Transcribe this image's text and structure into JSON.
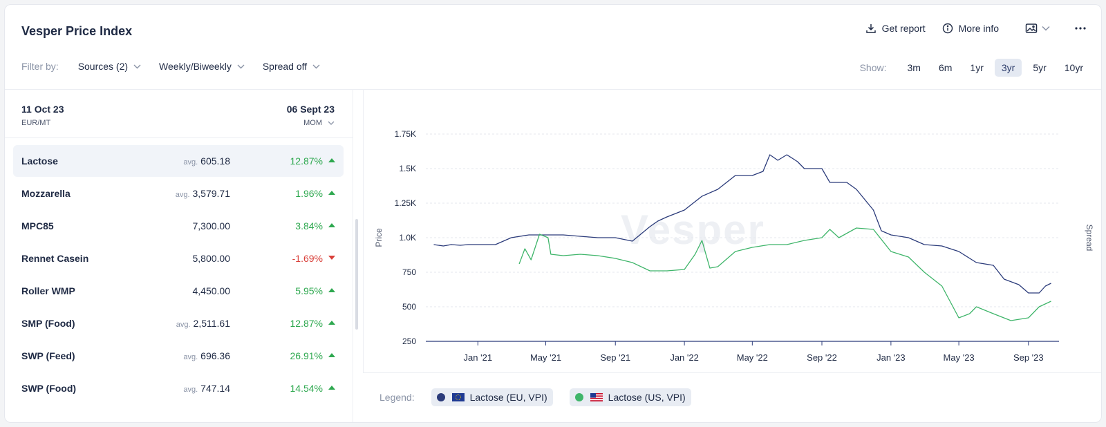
{
  "header": {
    "title": "Vesper Price Index",
    "get_report": "Get report",
    "more_info": "More info"
  },
  "filters": {
    "label": "Filter by:",
    "sources": "Sources (2)",
    "frequency": "Weekly/Biweekly",
    "spread": "Spread off"
  },
  "range": {
    "label": "Show:",
    "options": [
      "3m",
      "6m",
      "1yr",
      "3yr",
      "5yr",
      "10yr"
    ],
    "active": "3yr"
  },
  "list_header": {
    "left_date": "11 Oct 23",
    "unit": "EUR/MT",
    "right_date": "06 Sept 23",
    "compare": "MOM"
  },
  "products": [
    {
      "name": "Lactose",
      "avg": "avg.",
      "value": "605.18",
      "change": "12.87%",
      "dir": "up"
    },
    {
      "name": "Mozzarella",
      "avg": "avg.",
      "value": "3,579.71",
      "change": "1.96%",
      "dir": "up"
    },
    {
      "name": "MPC85",
      "avg": "",
      "value": "7,300.00",
      "change": "3.84%",
      "dir": "up"
    },
    {
      "name": "Rennet Casein",
      "avg": "",
      "value": "5,800.00",
      "change": "-1.69%",
      "dir": "down"
    },
    {
      "name": "Roller WMP",
      "avg": "",
      "value": "4,450.00",
      "change": "5.95%",
      "dir": "up"
    },
    {
      "name": "SMP (Food)",
      "avg": "avg.",
      "value": "2,511.61",
      "change": "12.87%",
      "dir": "up"
    },
    {
      "name": "SWP (Feed)",
      "avg": "avg.",
      "value": "696.36",
      "change": "26.91%",
      "dir": "up"
    },
    {
      "name": "SWP (Food)",
      "avg": "avg.",
      "value": "747.14",
      "change": "14.54%",
      "dir": "up"
    }
  ],
  "legend": {
    "label": "Legend:",
    "items": [
      "Lactose (EU, VPI)",
      "Lactose (US, VPI)"
    ]
  },
  "watermark": "Vesper",
  "colors": {
    "eu": "#2b3b7a",
    "us": "#3fb56a",
    "up": "#2ea84f",
    "down": "#d9403a"
  },
  "chart_data": {
    "type": "line",
    "ylabel": "Price",
    "y2label": "Spread",
    "ylim": [
      250,
      1750
    ],
    "yticks": [
      "1.75K",
      "1.5K",
      "1.25K",
      "1.0K",
      "750",
      "500",
      "250"
    ],
    "ytick_values": [
      1750,
      1500,
      1250,
      1000,
      750,
      500,
      250
    ],
    "xticks": [
      "Jan '21",
      "May '21",
      "Sep '21",
      "Jan '22",
      "May '22",
      "Sep '22",
      "Jan '23",
      "May '23",
      "Sep '23"
    ],
    "grid": true,
    "series": [
      {
        "name": "Lactose (EU, VPI)",
        "color": "#2b3b7a",
        "points": [
          [
            "2020-10-15",
            950
          ],
          [
            "2020-11-01",
            940
          ],
          [
            "2020-11-15",
            950
          ],
          [
            "2020-12-01",
            945
          ],
          [
            "2020-12-15",
            950
          ],
          [
            "2021-01-01",
            950
          ],
          [
            "2021-02-01",
            950
          ],
          [
            "2021-03-01",
            1000
          ],
          [
            "2021-04-01",
            1020
          ],
          [
            "2021-05-01",
            1020
          ],
          [
            "2021-06-01",
            1020
          ],
          [
            "2021-07-01",
            1010
          ],
          [
            "2021-08-01",
            1000
          ],
          [
            "2021-09-01",
            1000
          ],
          [
            "2021-10-01",
            975
          ],
          [
            "2021-11-01",
            1080
          ],
          [
            "2021-11-15",
            1120
          ],
          [
            "2021-12-01",
            1150
          ],
          [
            "2022-01-01",
            1200
          ],
          [
            "2022-02-01",
            1300
          ],
          [
            "2022-03-01",
            1350
          ],
          [
            "2022-04-01",
            1450
          ],
          [
            "2022-05-01",
            1450
          ],
          [
            "2022-05-20",
            1480
          ],
          [
            "2022-06-01",
            1600
          ],
          [
            "2022-06-15",
            1560
          ],
          [
            "2022-07-01",
            1600
          ],
          [
            "2022-07-20",
            1550
          ],
          [
            "2022-08-01",
            1500
          ],
          [
            "2022-09-01",
            1500
          ],
          [
            "2022-09-15",
            1400
          ],
          [
            "2022-10-15",
            1400
          ],
          [
            "2022-11-01",
            1350
          ],
          [
            "2022-12-01",
            1200
          ],
          [
            "2022-12-15",
            1050
          ],
          [
            "2023-01-01",
            1020
          ],
          [
            "2023-02-01",
            1000
          ],
          [
            "2023-03-01",
            950
          ],
          [
            "2023-04-01",
            940
          ],
          [
            "2023-05-01",
            900
          ],
          [
            "2023-06-01",
            820
          ],
          [
            "2023-07-01",
            800
          ],
          [
            "2023-07-20",
            700
          ],
          [
            "2023-08-15",
            660
          ],
          [
            "2023-09-01",
            600
          ],
          [
            "2023-09-20",
            600
          ],
          [
            "2023-10-01",
            650
          ],
          [
            "2023-10-11",
            670
          ]
        ]
      },
      {
        "name": "Lactose (US, VPI)",
        "color": "#3fb56a",
        "points": [
          [
            "2021-03-15",
            810
          ],
          [
            "2021-03-25",
            920
          ],
          [
            "2021-04-05",
            840
          ],
          [
            "2021-04-20",
            1025
          ],
          [
            "2021-05-05",
            1000
          ],
          [
            "2021-05-10",
            880
          ],
          [
            "2021-06-01",
            870
          ],
          [
            "2021-07-01",
            880
          ],
          [
            "2021-08-01",
            870
          ],
          [
            "2021-09-01",
            850
          ],
          [
            "2021-10-01",
            820
          ],
          [
            "2021-11-01",
            760
          ],
          [
            "2021-12-01",
            760
          ],
          [
            "2022-01-01",
            770
          ],
          [
            "2022-01-20",
            880
          ],
          [
            "2022-02-01",
            980
          ],
          [
            "2022-02-15",
            780
          ],
          [
            "2022-03-01",
            790
          ],
          [
            "2022-04-01",
            900
          ],
          [
            "2022-05-01",
            930
          ],
          [
            "2022-06-01",
            950
          ],
          [
            "2022-07-01",
            950
          ],
          [
            "2022-08-01",
            980
          ],
          [
            "2022-09-01",
            1000
          ],
          [
            "2022-09-15",
            1060
          ],
          [
            "2022-10-01",
            1000
          ],
          [
            "2022-11-01",
            1070
          ],
          [
            "2022-12-01",
            1060
          ],
          [
            "2023-01-01",
            900
          ],
          [
            "2023-02-01",
            860
          ],
          [
            "2023-03-01",
            750
          ],
          [
            "2023-04-01",
            650
          ],
          [
            "2023-05-01",
            420
          ],
          [
            "2023-05-20",
            450
          ],
          [
            "2023-06-01",
            500
          ],
          [
            "2023-07-01",
            450
          ],
          [
            "2023-08-01",
            400
          ],
          [
            "2023-09-01",
            420
          ],
          [
            "2023-09-20",
            500
          ],
          [
            "2023-10-11",
            540
          ]
        ]
      }
    ]
  }
}
